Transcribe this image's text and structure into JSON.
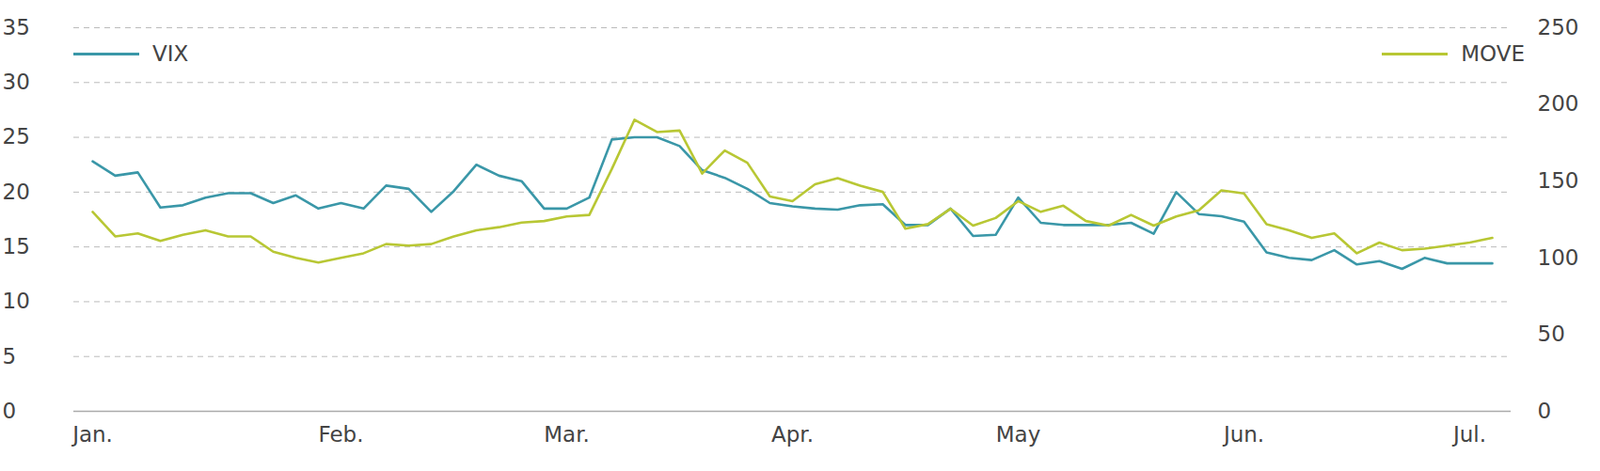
{
  "chart_data": {
    "type": "line",
    "categories": [
      "Jan.",
      null,
      null,
      null,
      null,
      null,
      null,
      null,
      null,
      null,
      null,
      "Feb.",
      null,
      null,
      null,
      null,
      null,
      null,
      null,
      null,
      null,
      "Mar.",
      null,
      null,
      null,
      null,
      null,
      null,
      null,
      null,
      null,
      "Apr.",
      null,
      null,
      null,
      null,
      null,
      null,
      null,
      null,
      null,
      "May",
      null,
      null,
      null,
      null,
      null,
      null,
      null,
      null,
      null,
      "Jun.",
      null,
      null,
      null,
      null,
      null,
      null,
      null,
      null,
      null,
      "Jul.",
      null
    ],
    "series": [
      {
        "name": "VIX",
        "color": "#3a97a8",
        "values": [
          22.8,
          21.5,
          21.8,
          18.6,
          18.8,
          19.5,
          19.9,
          19.9,
          19.0,
          19.7,
          18.5,
          19.0,
          18.5,
          20.6,
          20.3,
          18.2,
          20.1,
          22.5,
          21.5,
          21.0,
          18.5,
          18.5,
          19.5,
          24.8,
          25.0,
          25.0,
          24.2,
          22.0,
          21.3,
          20.3,
          19.0,
          18.7,
          18.5,
          18.4,
          18.8,
          18.9,
          17.0,
          17.0,
          18.5,
          16.0,
          16.1,
          19.5,
          17.2,
          17.0,
          17.0,
          17.0,
          17.2,
          16.2,
          20.0,
          18.0,
          17.8,
          17.3,
          14.5,
          14.0,
          13.8,
          14.7,
          13.4,
          13.7,
          13.0,
          14.0,
          13.5,
          13.5,
          13.5
        ]
      },
      {
        "name": "MOVE",
        "color": "#b8c734",
        "axis": "y2",
        "values": [
          130,
          114,
          116,
          111,
          115,
          118,
          114,
          114,
          104,
          100,
          97,
          100,
          103,
          109,
          108,
          109,
          114,
          118,
          120,
          123,
          124,
          127,
          128,
          158,
          190,
          182,
          183,
          155,
          170,
          162,
          140,
          137,
          148,
          152,
          147,
          143,
          119,
          122,
          132,
          121,
          126,
          137,
          130,
          134,
          124,
          121,
          128,
          121,
          127,
          131,
          144,
          142,
          122,
          118,
          113,
          116,
          103,
          110,
          105,
          106,
          108,
          110,
          113
        ]
      }
    ],
    "ylim": [
      0,
      35
    ],
    "yticks": [
      0,
      5,
      10,
      15,
      20,
      25,
      30,
      35
    ],
    "y2lim": [
      0,
      250
    ],
    "y2ticks": [
      0,
      50,
      100,
      150,
      200,
      250
    ],
    "grid": true
  }
}
